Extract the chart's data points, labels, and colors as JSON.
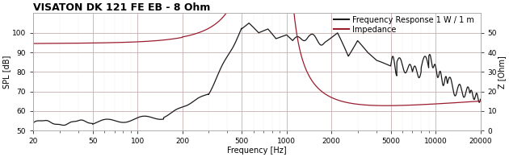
{
  "title": "VISATON DK 121 FE EB - 8 Ohm",
  "left_ylabel": "SPL [dB]",
  "right_ylabel": "Z [Ohm]",
  "xlabel": "Frequency [Hz]",
  "legend_freq": "Frequency Response 1 W / 1 m",
  "legend_imp": "Impedance",
  "freq_color": "#1a1a1a",
  "imp_color": "#9b1c2e",
  "background_color": "#ffffff",
  "grid_major_color": "#c8b0b0",
  "grid_minor_color": "#e0d0d0",
  "spl_ylim": [
    50,
    110
  ],
  "spl_yticks": [
    50,
    60,
    70,
    80,
    90,
    100
  ],
  "imp_ylim": [
    0,
    60
  ],
  "imp_yticks": [
    0,
    10,
    20,
    30,
    40,
    50
  ],
  "xlim": [
    20,
    20000
  ],
  "title_fontsize": 9,
  "label_fontsize": 7,
  "tick_fontsize": 6.5,
  "legend_fontsize": 7
}
